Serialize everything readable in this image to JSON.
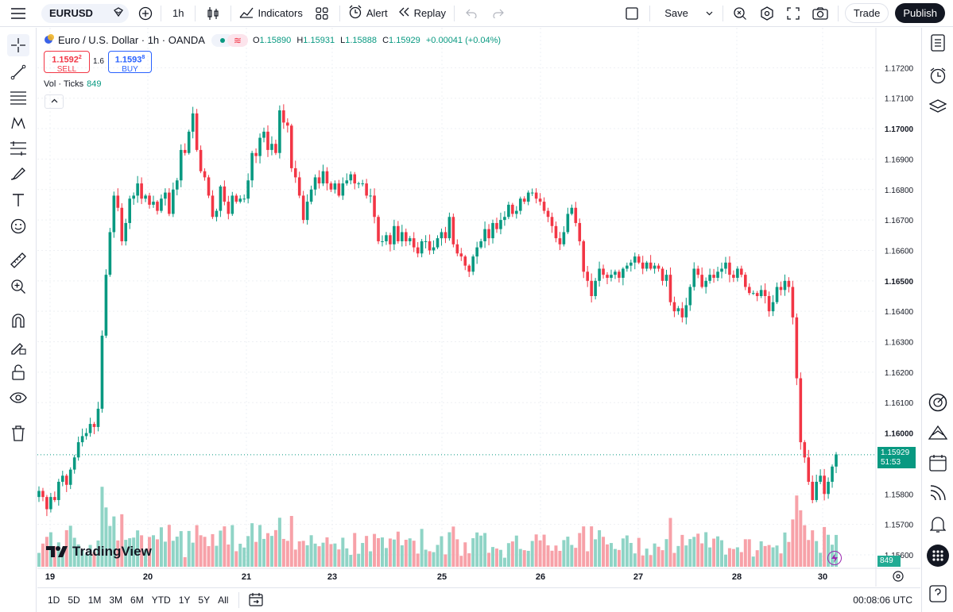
{
  "topbar": {
    "symbol": "EURUSD",
    "interval": "1h",
    "indicators_label": "Indicators",
    "alert_label": "Alert",
    "replay_label": "Replay",
    "save_label": "Save",
    "trade_label": "Trade",
    "publish_label": "Publish"
  },
  "legend": {
    "title": "Euro / U.S. Dollar · 1h · OANDA",
    "o_label": "O",
    "o_value": "1.15890",
    "h_label": "H",
    "h_value": "1.15931",
    "l_label": "L",
    "l_value": "1.15888",
    "c_label": "C",
    "c_value": "1.15929",
    "change": "+0.00041 (+0.04%)"
  },
  "trade": {
    "sell_price": "1.1592",
    "sell_sup": "2",
    "sell_label": "SELL",
    "spread": "1.6",
    "buy_price": "1.1593",
    "buy_sup": "8",
    "buy_label": "BUY"
  },
  "volume": {
    "label": "Vol · Ticks",
    "value": "849"
  },
  "last_price": {
    "price": "1.15929",
    "countdown": "51:53",
    "volume_tag": "849"
  },
  "logo_text": "TradingView",
  "ranges": [
    "1D",
    "5D",
    "1M",
    "3M",
    "6M",
    "YTD",
    "1Y",
    "5Y",
    "All"
  ],
  "clock": "00:08:06 UTC",
  "colors": {
    "up": "#089981",
    "down": "#f23645",
    "up_vol": "#8fd4c6",
    "down_vol": "#f7a1a8"
  },
  "chart_data": {
    "type": "candlestick",
    "y_ticks": [
      "1.17200",
      "1.17100",
      "1.17000",
      "1.16900",
      "1.16800",
      "1.16700",
      "1.16600",
      "1.16500",
      "1.16400",
      "1.16300",
      "1.16200",
      "1.16100",
      "1.16000",
      "1.15900",
      "1.15800",
      "1.15700",
      "1.15600"
    ],
    "y_bold_ticks": [
      "1.17000",
      "1.16500",
      "1.16000"
    ],
    "x_ticks": [
      "19",
      "20",
      "21",
      "23",
      "25",
      "26",
      "27",
      "28",
      "30"
    ],
    "ylim": [
      1.156,
      1.1724
    ],
    "last_price": 1.15929,
    "grid": true,
    "closes": [
      1.1581,
      1.1579,
      1.1575,
      1.1579,
      1.1578,
      1.1584,
      1.1586,
      1.1583,
      1.1588,
      1.1592,
      1.1597,
      1.1599,
      1.16,
      1.1603,
      1.1602,
      1.1608,
      1.1632,
      1.1652,
      1.1666,
      1.1678,
      1.1674,
      1.1663,
      1.1669,
      1.1677,
      1.1678,
      1.1682,
      1.1677,
      1.1678,
      1.1675,
      1.1676,
      1.1673,
      1.1677,
      1.1679,
      1.1672,
      1.168,
      1.1683,
      1.1693,
      1.1692,
      1.1699,
      1.1705,
      1.1693,
      1.1686,
      1.1684,
      1.1678,
      1.1671,
      1.1673,
      1.1681,
      1.1676,
      1.1672,
      1.1678,
      1.1676,
      1.1677,
      1.1677,
      1.1683,
      1.1692,
      1.1691,
      1.1697,
      1.1699,
      1.1693,
      1.1695,
      1.1692,
      1.1706,
      1.1702,
      1.1701,
      1.1687,
      1.1684,
      1.1678,
      1.167,
      1.1676,
      1.168,
      1.1684,
      1.1682,
      1.1686,
      1.1682,
      1.168,
      1.1682,
      1.1678,
      1.1682,
      1.1683,
      1.1685,
      1.1682,
      1.1682,
      1.1682,
      1.1678,
      1.1678,
      1.1671,
      1.1663,
      1.1663,
      1.1665,
      1.1662,
      1.1668,
      1.1663,
      1.1666,
      1.1663,
      1.1664,
      1.1661,
      1.1659,
      1.1663,
      1.1663,
      1.166,
      1.1661,
      1.1664,
      1.1666,
      1.1664,
      1.1671,
      1.1662,
      1.1659,
      1.1658,
      1.1655,
      1.1653,
      1.1658,
      1.1661,
      1.1663,
      1.1667,
      1.1664,
      1.1669,
      1.1667,
      1.167,
      1.1671,
      1.1675,
      1.1672,
      1.1673,
      1.1677,
      1.1676,
      1.1679,
      1.1679,
      1.1677,
      1.1676,
      1.1673,
      1.1671,
      1.1668,
      1.1664,
      1.1662,
      1.1666,
      1.1672,
      1.1674,
      1.1669,
      1.1663,
      1.1653,
      1.165,
      1.1645,
      1.165,
      1.1654,
      1.1652,
      1.1651,
      1.1652,
      1.1653,
      1.1651,
      1.1654,
      1.1655,
      1.1656,
      1.1658,
      1.1656,
      1.1654,
      1.1656,
      1.1654,
      1.1655,
      1.1654,
      1.165,
      1.1652,
      1.1643,
      1.164,
      1.1641,
      1.1638,
      1.1642,
      1.1648,
      1.1654,
      1.1652,
      1.1648,
      1.165,
      1.1652,
      1.1651,
      1.1653,
      1.1654,
      1.1656,
      1.1652,
      1.1651,
      1.1654,
      1.1652,
      1.1648,
      1.1646,
      1.1646,
      1.1645,
      1.1647,
      1.1645,
      1.164,
      1.1643,
      1.1648,
      1.1647,
      1.165,
      1.1648,
      1.1638,
      1.1618,
      1.1597,
      1.1592,
      1.1584,
      1.1578,
      1.1584,
      1.1586,
      1.158,
      1.1584,
      1.1589,
      1.1593
    ]
  }
}
